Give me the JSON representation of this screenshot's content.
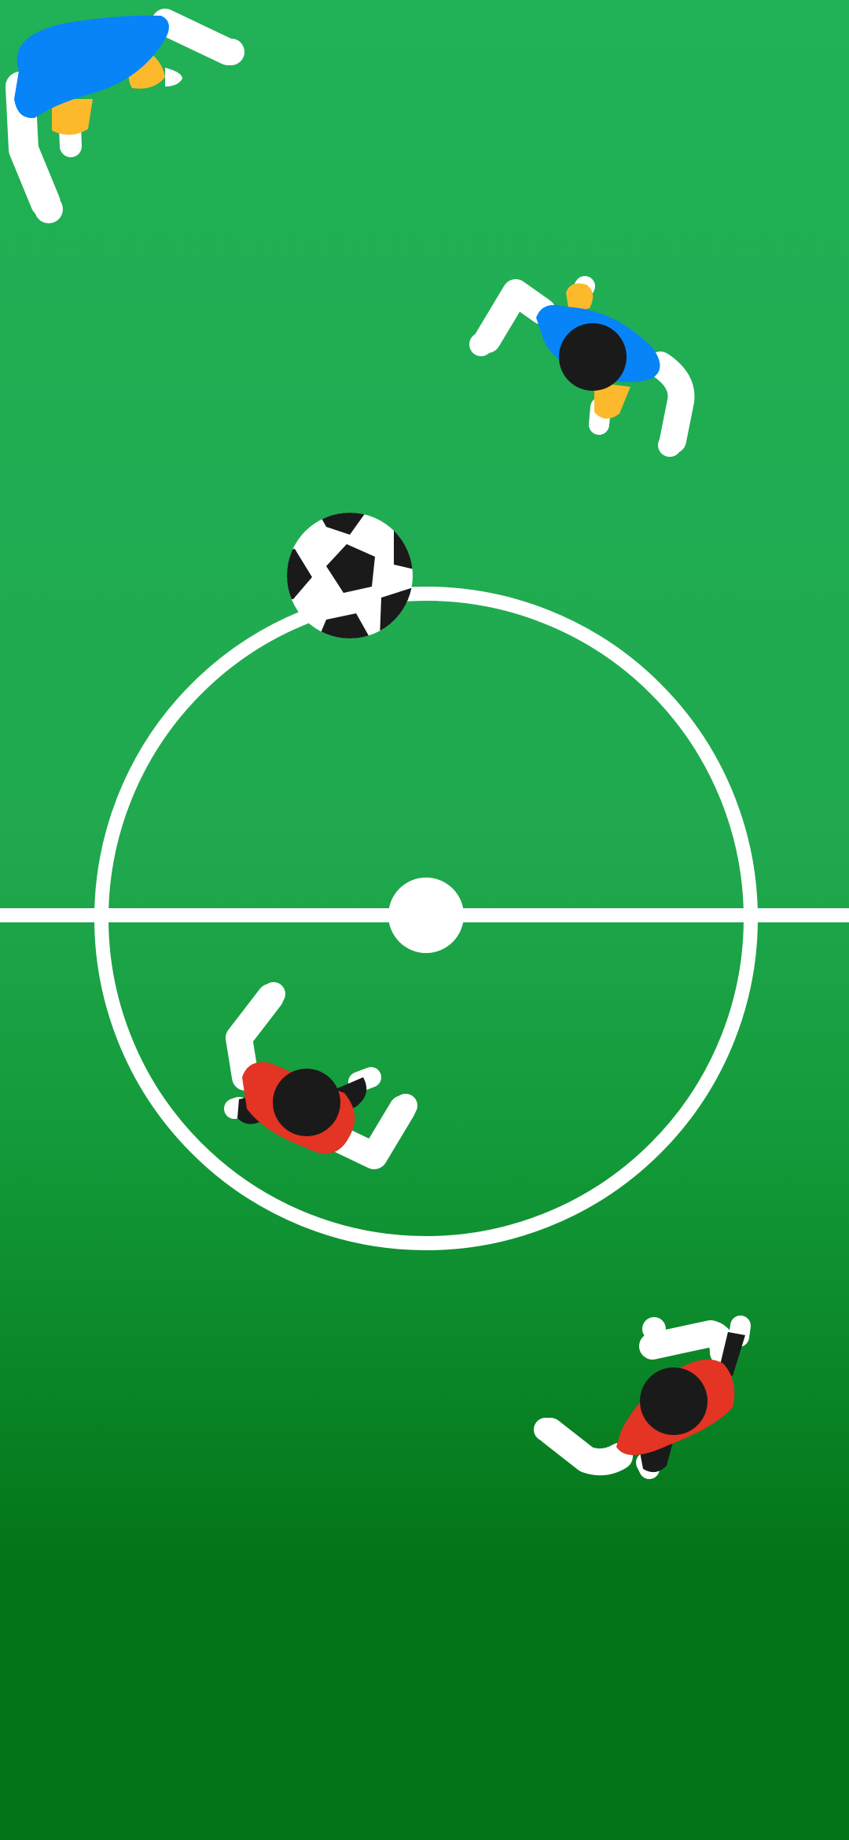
{
  "scene": {
    "type": "soccer-field-top-down",
    "title": "",
    "ball_count": 1,
    "player_count": 4
  },
  "colors": {
    "field_top": "#21b156",
    "field_mid": "#20a94f",
    "field_lower": "#139a3a",
    "field_bottom": "#037518",
    "line": "#ffffff",
    "team_blue_shirt": "#0784f7",
    "team_blue_accent": "#fdb92c",
    "team_red_shirt": "#e43423",
    "team_red_accent": "#1a1a1a",
    "head": "#1a1a1a",
    "limb": "#ffffff",
    "ball_white": "#ffffff",
    "ball_black": "#1a1a1a"
  },
  "teams": [
    {
      "name": "blue",
      "shirt_color_key": "team_blue_shirt",
      "players": 2
    },
    {
      "name": "red",
      "shirt_color_key": "team_red_shirt",
      "players": 2
    }
  ]
}
